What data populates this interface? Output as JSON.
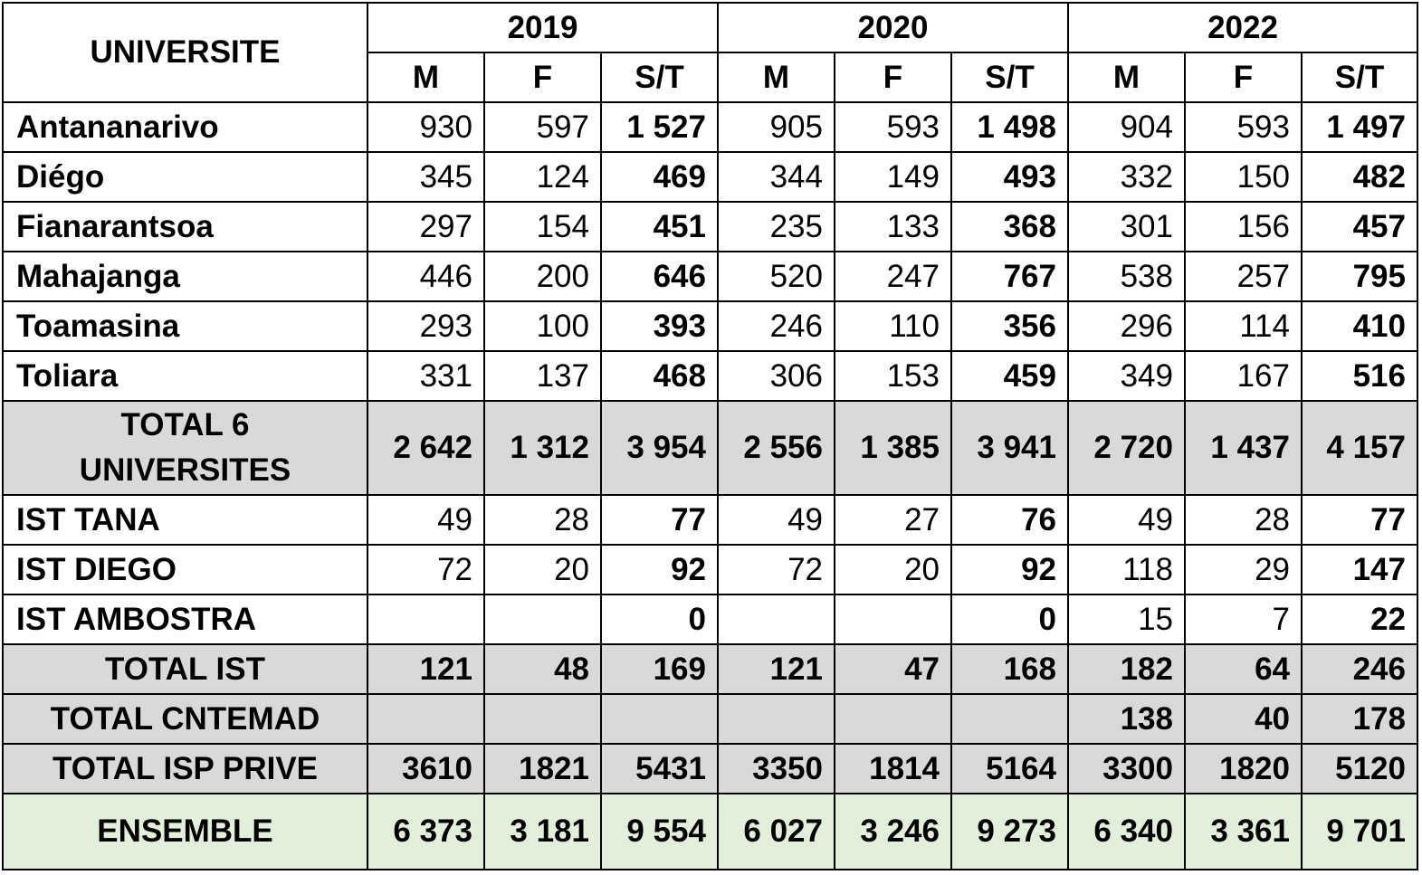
{
  "header": {
    "university_label": "UNIVERSITE",
    "years": [
      "2019",
      "2020",
      "2022"
    ],
    "subcols": [
      "M",
      "F",
      "S/T"
    ]
  },
  "rows": [
    {
      "name": "Antananarivo",
      "values": [
        "930",
        "597",
        "1 527",
        "905",
        "593",
        "1 498",
        "904",
        "593",
        "1 497"
      ]
    },
    {
      "name": "Diégo",
      "values": [
        "345",
        "124",
        "469",
        "344",
        "149",
        "493",
        "332",
        "150",
        "482"
      ]
    },
    {
      "name": "Fianarantsoa",
      "values": [
        "297",
        "154",
        "451",
        "235",
        "133",
        "368",
        "301",
        "156",
        "457"
      ]
    },
    {
      "name": "Mahajanga",
      "values": [
        "446",
        "200",
        "646",
        "520",
        "247",
        "767",
        "538",
        "257",
        "795"
      ]
    },
    {
      "name": "Toamasina",
      "values": [
        "293",
        "100",
        "393",
        "246",
        "110",
        "356",
        "296",
        "114",
        "410"
      ]
    },
    {
      "name": "Toliara",
      "values": [
        "331",
        "137",
        "468",
        "306",
        "153",
        "459",
        "349",
        "167",
        "516"
      ]
    },
    {
      "name": "TOTAL 6 UNIVERSITES",
      "values": [
        "2 642",
        "1 312",
        "3 954",
        "2 556",
        "1 385",
        "3 941",
        "2 720",
        "1 437",
        "4 157"
      ]
    },
    {
      "name": "IST TANA",
      "values": [
        "49",
        "28",
        "77",
        "49",
        "27",
        "76",
        "49",
        "28",
        "77"
      ]
    },
    {
      "name": "IST DIEGO",
      "values": [
        "72",
        "20",
        "92",
        "72",
        "20",
        "92",
        "118",
        "29",
        "147"
      ]
    },
    {
      "name": "IST AMBOSTRA",
      "values": [
        "",
        "",
        "0",
        "",
        "",
        "0",
        "15",
        "7",
        "22"
      ]
    },
    {
      "name": "TOTAL IST",
      "values": [
        "121",
        "48",
        "169",
        "121",
        "47",
        "168",
        "182",
        "64",
        "246"
      ]
    },
    {
      "name": "TOTAL CNTEMAD",
      "values": [
        "",
        "",
        "",
        "",
        "",
        "",
        "138",
        "40",
        "178"
      ]
    },
    {
      "name": "TOTAL ISP PRIVE",
      "values": [
        "3610",
        "1821",
        "5431",
        "3350",
        "1814",
        "5164",
        "3300",
        "1820",
        "5120"
      ]
    },
    {
      "name": "ENSEMBLE",
      "values": [
        "6 373",
        "3 181",
        "9 554",
        "6 027",
        "3 246",
        "9 273",
        "6 340",
        "3 361",
        "9 701"
      ]
    }
  ],
  "colors": {
    "total_row_bg": "#d9d9d9",
    "ensemble_row_bg": "#e2efda"
  }
}
